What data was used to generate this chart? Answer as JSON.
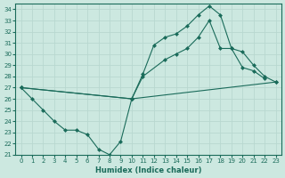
{
  "title": "",
  "xlabel": "Humidex (Indice chaleur)",
  "ylabel": "",
  "background_color": "#cce8e0",
  "line_color": "#1a6b5a",
  "grid_color": "#b8d8d0",
  "xlim": [
    -0.5,
    23.5
  ],
  "ylim": [
    21,
    34.5
  ],
  "yticks": [
    21,
    22,
    23,
    24,
    25,
    26,
    27,
    28,
    29,
    30,
    31,
    32,
    33,
    34
  ],
  "xticks": [
    0,
    1,
    2,
    3,
    4,
    5,
    6,
    7,
    8,
    9,
    10,
    11,
    12,
    13,
    14,
    15,
    16,
    17,
    18,
    19,
    20,
    21,
    22,
    23
  ],
  "line1_x": [
    0,
    1,
    2,
    3,
    4,
    5,
    6,
    7,
    8,
    9,
    10,
    11,
    12,
    13,
    14,
    15,
    16,
    17,
    18,
    19,
    20,
    21,
    22
  ],
  "line1_y": [
    27.0,
    26.0,
    25.0,
    24.0,
    23.2,
    23.2,
    22.8,
    21.5,
    21.0,
    22.2,
    26.0,
    28.2,
    30.8,
    31.5,
    31.8,
    32.5,
    33.5,
    34.3,
    33.5,
    30.5,
    28.8,
    28.5,
    27.8
  ],
  "line2_x": [
    0,
    10,
    23
  ],
  "line2_y": [
    27.0,
    26.0,
    27.5
  ],
  "line3_x": [
    0,
    10,
    11,
    13,
    14,
    15,
    16,
    17,
    18,
    19,
    20,
    21,
    22,
    23
  ],
  "line3_y": [
    27.0,
    26.0,
    28.0,
    29.5,
    30.0,
    30.5,
    31.5,
    33.0,
    30.5,
    30.5,
    30.2,
    29.0,
    28.0,
    27.5
  ],
  "marker": "D",
  "markersize": 2.5
}
